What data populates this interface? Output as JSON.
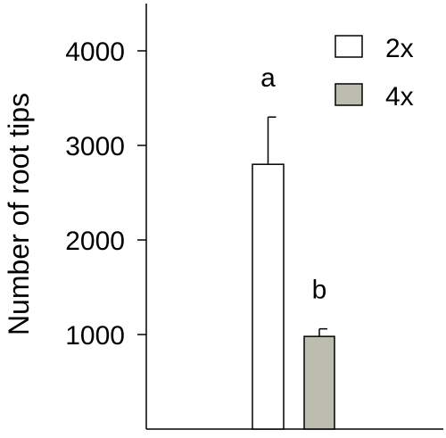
{
  "chart_data": {
    "type": "bar",
    "title": "",
    "xlabel": "",
    "ylabel": "Number of root tips",
    "ylim": [
      0,
      4500
    ],
    "yticks": [
      1000,
      2000,
      3000,
      4000
    ],
    "grid": false,
    "legend_position": "top-right",
    "series": [
      {
        "name": "2x",
        "color": "#ffffff",
        "value": 2800,
        "error": 500,
        "significance": "a"
      },
      {
        "name": "4x",
        "color": "#bcbcb0",
        "value": 980,
        "error": 80,
        "significance": "b"
      }
    ]
  }
}
